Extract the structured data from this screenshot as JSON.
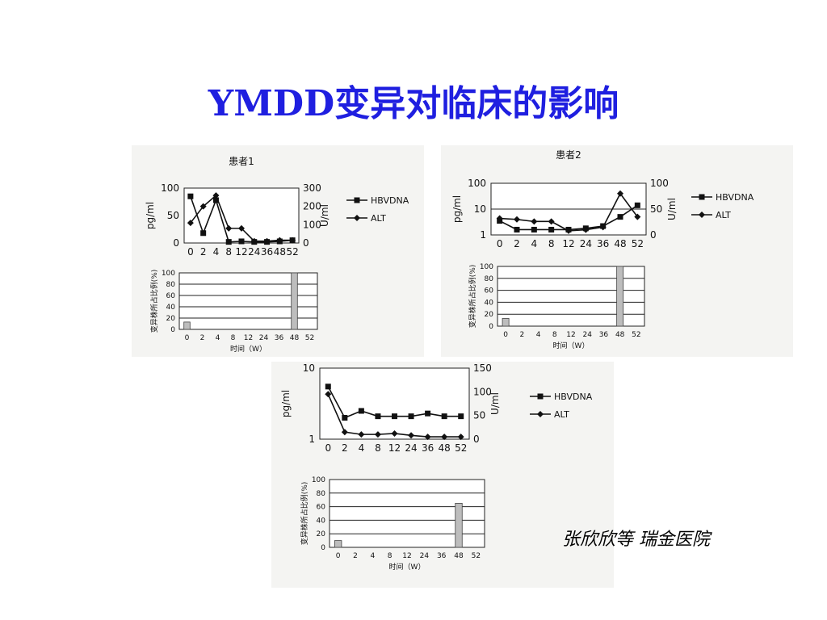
{
  "slide": {
    "title": "YMDD变异对临床的影响",
    "credit": "张欣欣等 瑞金医院",
    "colors": {
      "title": "#1f1fe0",
      "bar": "#bdbdbd",
      "line": "#111111"
    }
  },
  "chart_data": [
    {
      "id": "p1-line",
      "type": "line",
      "title": "患者1",
      "x": [
        0,
        2,
        4,
        8,
        12,
        24,
        36,
        48,
        52
      ],
      "ylabel": "pg/ml",
      "ylim": [
        0,
        100
      ],
      "yticks": [
        0,
        50,
        100
      ],
      "y2label": "U/ml",
      "y2lim": [
        0,
        300
      ],
      "y2ticks": [
        0,
        100,
        200,
        300
      ],
      "series": [
        {
          "name": "HBVDNA",
          "axis": "left",
          "marker": "square",
          "values": [
            85,
            18,
            78,
            2,
            3,
            2,
            2,
            3,
            5
          ]
        },
        {
          "name": "ALT",
          "axis": "right",
          "marker": "diamond",
          "values": [
            110,
            200,
            260,
            80,
            80,
            10,
            10,
            15,
            15
          ]
        }
      ],
      "legend": "right"
    },
    {
      "id": "p1-bar",
      "type": "bar",
      "x": [
        0,
        2,
        4,
        8,
        12,
        24,
        36,
        48,
        52
      ],
      "xlabel": "时间（W）",
      "ylabel": "变异株所占比例(%)",
      "ylim": [
        0,
        100
      ],
      "yticks": [
        0,
        20,
        40,
        60,
        80,
        100
      ],
      "bars": [
        {
          "x": 0,
          "value": 13
        },
        {
          "x": 48,
          "value": 100
        }
      ]
    },
    {
      "id": "p2-line",
      "type": "line",
      "title": "患者2",
      "x": [
        0,
        2,
        4,
        8,
        12,
        24,
        36,
        48,
        52
      ],
      "ylabel": "pg/ml",
      "yscale": "log",
      "ylim": [
        1,
        100
      ],
      "yticks": [
        1,
        10,
        100
      ],
      "y2label": "U/ml",
      "y2lim": [
        0,
        100
      ],
      "y2ticks": [
        0,
        50,
        100
      ],
      "series": [
        {
          "name": "HBVDNA",
          "axis": "left",
          "marker": "square",
          "values": [
            3.5,
            1.6,
            1.6,
            1.6,
            1.6,
            1.8,
            2.2,
            5.0,
            14
          ]
        },
        {
          "name": "ALT",
          "axis": "right",
          "marker": "diamond",
          "values": [
            32,
            30,
            26,
            26,
            8,
            10,
            15,
            80,
            35
          ]
        }
      ],
      "legend": "right"
    },
    {
      "id": "p2-bar",
      "type": "bar",
      "x": [
        0,
        2,
        4,
        8,
        12,
        24,
        36,
        48,
        52
      ],
      "xlabel": "时间（W）",
      "ylabel": "变异株所占比例(%)",
      "ylim": [
        0,
        100
      ],
      "yticks": [
        0,
        20,
        40,
        60,
        80,
        100
      ],
      "bars": [
        {
          "x": 0,
          "value": 13
        },
        {
          "x": 48,
          "value": 100
        }
      ]
    },
    {
      "id": "p3-line",
      "type": "line",
      "x": [
        0,
        2,
        4,
        8,
        12,
        24,
        36,
        48,
        52
      ],
      "ylabel": "pg/ml",
      "yscale": "log",
      "ylim": [
        1,
        10
      ],
      "yticks": [
        1,
        10
      ],
      "y2label": "U/ml",
      "y2lim": [
        0,
        150
      ],
      "y2ticks": [
        0,
        50,
        100,
        150
      ],
      "series": [
        {
          "name": "HBVDNA",
          "axis": "left",
          "marker": "square",
          "values": [
            5.5,
            2.0,
            2.5,
            2.1,
            2.1,
            2.1,
            2.3,
            2.1,
            2.1
          ]
        },
        {
          "name": "ALT",
          "axis": "right",
          "marker": "diamond",
          "values": [
            95,
            15,
            10,
            10,
            12,
            8,
            5,
            5,
            5
          ]
        }
      ],
      "legend": "right"
    },
    {
      "id": "p3-bar",
      "type": "bar",
      "x": [
        0,
        2,
        4,
        8,
        12,
        24,
        36,
        48,
        52
      ],
      "xlabel": "时间（W）",
      "ylabel": "变异株所占比例(%)",
      "ylim": [
        0,
        100
      ],
      "yticks": [
        0,
        20,
        40,
        60,
        80,
        100
      ],
      "yticklabels": [
        "0",
        "20",
        "40",
        "60",
        "80",
        "100"
      ],
      "bars": [
        {
          "x": 0,
          "value": 10
        },
        {
          "x": 48,
          "value": 65
        }
      ]
    }
  ]
}
